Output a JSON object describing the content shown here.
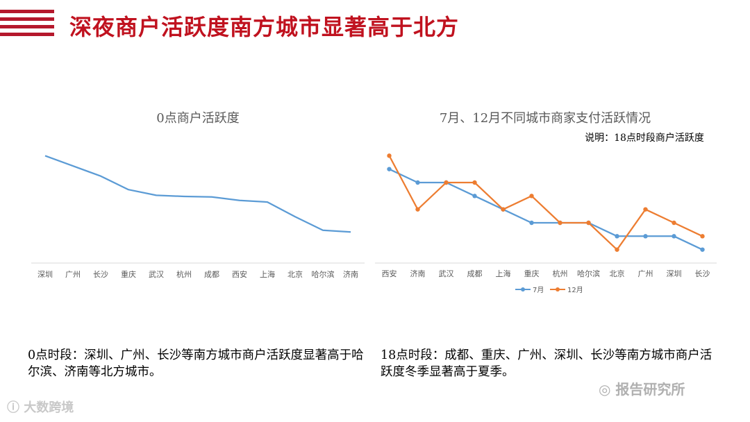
{
  "title": "深夜商户活跃度南方城市显著高于北方",
  "colors": {
    "accent": "#c0121f",
    "series_blue": "#5b9bd5",
    "series_orange": "#ed7d31"
  },
  "chart_data": [
    {
      "type": "line",
      "title": "0点商户活跃度",
      "categories": [
        "深圳",
        "广州",
        "长沙",
        "重庆",
        "武汉",
        "杭州",
        "成都",
        "西安",
        "上海",
        "北京",
        "哈尔滨",
        "济南"
      ],
      "series": [
        {
          "name": "0点商户活跃度",
          "values": [
            95,
            86,
            77,
            65,
            60,
            59,
            58.5,
            55.5,
            54,
            41,
            29,
            27.5
          ]
        }
      ],
      "ylim": [
        0,
        110
      ],
      "grid": false,
      "legend": "none"
    },
    {
      "type": "line",
      "title": "7月、12月不同城市商家支付活跃情况",
      "note": "说明：18点时段商户活跃度",
      "categories": [
        "西安",
        "济南",
        "武汉",
        "成都",
        "上海",
        "重庆",
        "杭州",
        "哈尔滨",
        "北京",
        "广州",
        "深圳",
        "长沙"
      ],
      "series": [
        {
          "name": "7月",
          "values": [
            7,
            6,
            6,
            5,
            4,
            3,
            3,
            3,
            2,
            2,
            2,
            1
          ]
        },
        {
          "name": "12月",
          "values": [
            8,
            4,
            6,
            6,
            4,
            5,
            3,
            3,
            1,
            4,
            3,
            2
          ]
        }
      ],
      "ylim": [
        0,
        9
      ],
      "grid": false,
      "legend": "bottom"
    }
  ],
  "texts": {
    "left_para": "0点时段：深圳、广州、长沙等南方城市商户活跃度显著高于哈尔滨、济南等北方城市。",
    "right_para": "18点时段：成都、重庆、广州、深圳、长沙等南方城市商户活跃度冬季显著高于夏季。",
    "watermark_left": "大数跨境",
    "watermark_right": "报告研究所"
  }
}
